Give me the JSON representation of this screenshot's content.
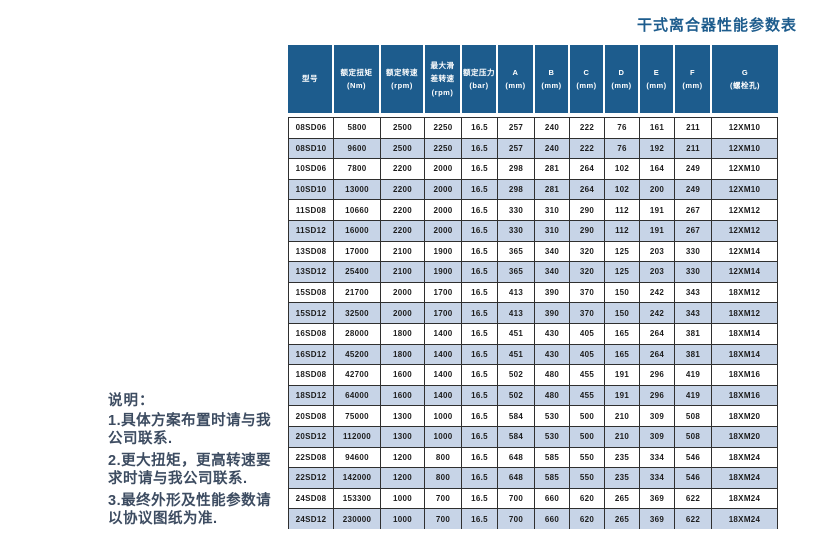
{
  "title": "干式离合器性能参数表",
  "table": {
    "columns": [
      {
        "lines": [
          "型号"
        ]
      },
      {
        "lines": [
          "额定扭矩",
          "(Nm)"
        ]
      },
      {
        "lines": [
          "额定转速",
          "(rpm)"
        ]
      },
      {
        "lines": [
          "最大滑",
          "差转速",
          "(rpm)"
        ]
      },
      {
        "lines": [
          "额定压力",
          "(bar)"
        ]
      },
      {
        "lines": [
          "A",
          "(mm)"
        ]
      },
      {
        "lines": [
          "B",
          "(mm)"
        ]
      },
      {
        "lines": [
          "C",
          "(mm)"
        ]
      },
      {
        "lines": [
          "D",
          "(mm)"
        ]
      },
      {
        "lines": [
          "E",
          "(mm)"
        ]
      },
      {
        "lines": [
          "F",
          "(mm)"
        ]
      },
      {
        "lines": [
          "G",
          "(螺栓孔)"
        ]
      }
    ],
    "rows": [
      [
        "08SD06",
        "5800",
        "2500",
        "2250",
        "16.5",
        "257",
        "240",
        "222",
        "76",
        "161",
        "211",
        "12XM10"
      ],
      [
        "08SD10",
        "9600",
        "2500",
        "2250",
        "16.5",
        "257",
        "240",
        "222",
        "76",
        "192",
        "211",
        "12XM10"
      ],
      [
        "10SD06",
        "7800",
        "2200",
        "2000",
        "16.5",
        "298",
        "281",
        "264",
        "102",
        "164",
        "249",
        "12XM10"
      ],
      [
        "10SD10",
        "13000",
        "2200",
        "2000",
        "16.5",
        "298",
        "281",
        "264",
        "102",
        "200",
        "249",
        "12XM10"
      ],
      [
        "11SD08",
        "10660",
        "2200",
        "2000",
        "16.5",
        "330",
        "310",
        "290",
        "112",
        "191",
        "267",
        "12XM12"
      ],
      [
        "11SD12",
        "16000",
        "2200",
        "2000",
        "16.5",
        "330",
        "310",
        "290",
        "112",
        "191",
        "267",
        "12XM12"
      ],
      [
        "13SD08",
        "17000",
        "2100",
        "1900",
        "16.5",
        "365",
        "340",
        "320",
        "125",
        "203",
        "330",
        "12XM14"
      ],
      [
        "13SD12",
        "25400",
        "2100",
        "1900",
        "16.5",
        "365",
        "340",
        "320",
        "125",
        "203",
        "330",
        "12XM14"
      ],
      [
        "15SD08",
        "21700",
        "2000",
        "1700",
        "16.5",
        "413",
        "390",
        "370",
        "150",
        "242",
        "343",
        "18XM12"
      ],
      [
        "15SD12",
        "32500",
        "2000",
        "1700",
        "16.5",
        "413",
        "390",
        "370",
        "150",
        "242",
        "343",
        "18XM12"
      ],
      [
        "16SD08",
        "28000",
        "1800",
        "1400",
        "16.5",
        "451",
        "430",
        "405",
        "165",
        "264",
        "381",
        "18XM14"
      ],
      [
        "16SD12",
        "45200",
        "1800",
        "1400",
        "16.5",
        "451",
        "430",
        "405",
        "165",
        "264",
        "381",
        "18XM14"
      ],
      [
        "18SD08",
        "42700",
        "1600",
        "1400",
        "16.5",
        "502",
        "480",
        "455",
        "191",
        "296",
        "419",
        "18XM16"
      ],
      [
        "18SD12",
        "64000",
        "1600",
        "1400",
        "16.5",
        "502",
        "480",
        "455",
        "191",
        "296",
        "419",
        "18XM16"
      ],
      [
        "20SD08",
        "75000",
        "1300",
        "1000",
        "16.5",
        "584",
        "530",
        "500",
        "210",
        "309",
        "508",
        "18XM20"
      ],
      [
        "20SD12",
        "112000",
        "1300",
        "1000",
        "16.5",
        "584",
        "530",
        "500",
        "210",
        "309",
        "508",
        "18XM20"
      ],
      [
        "22SD08",
        "94600",
        "1200",
        "800",
        "16.5",
        "648",
        "585",
        "550",
        "235",
        "334",
        "546",
        "18XM24"
      ],
      [
        "22SD12",
        "142000",
        "1200",
        "800",
        "16.5",
        "648",
        "585",
        "550",
        "235",
        "334",
        "546",
        "18XM24"
      ],
      [
        "24SD08",
        "153300",
        "1000",
        "700",
        "16.5",
        "700",
        "660",
        "620",
        "265",
        "369",
        "622",
        "18XM24"
      ],
      [
        "24SD12",
        "230000",
        "1000",
        "700",
        "16.5",
        "700",
        "660",
        "620",
        "265",
        "369",
        "622",
        "18XM24"
      ]
    ]
  },
  "notes": {
    "title": "说明：",
    "items": [
      "1.具体方案布置时请与我公司联系.",
      "2.更大扭矩，更高转速要求时请与我公司联系.",
      "3.最终外形及性能参数请以协议图纸为准."
    ]
  },
  "colors": {
    "header_bg": "#1d5c8d",
    "row_alt_bg": "#c7d4e7",
    "border": "#2f2f2f",
    "title_color": "#1d5c8d",
    "notes_color": "#3d4c61"
  }
}
